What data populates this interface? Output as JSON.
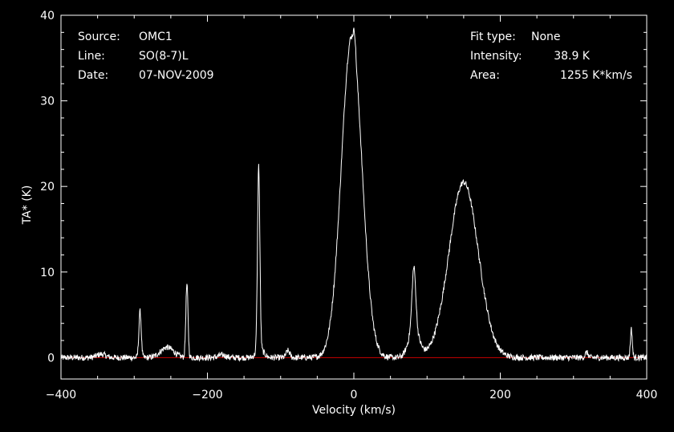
{
  "colors": {
    "background": "#000000",
    "foreground": "#ffffff",
    "baseline": "#cc0000"
  },
  "header": {
    "source_label": "Source:",
    "source_value": "OMC1",
    "line_label": "Line:",
    "line_value": "SO(8-7)L",
    "date_label": "Date:",
    "date_value": "07-NOV-2009",
    "fit_label": "Fit type:",
    "fit_value": "None",
    "intensity_label": "Intensity:",
    "intensity_value": "38.9 K",
    "area_label": "Area:",
    "area_value": "1255 K*km/s"
  },
  "chart_data": {
    "type": "line",
    "xlabel": "Velocity (km/s)",
    "ylabel": "TA* (K)",
    "xlim": [
      -400,
      400
    ],
    "ylim": [
      -2.5,
      40
    ],
    "x_ticks": [
      -400,
      -200,
      0,
      200,
      400
    ],
    "y_ticks": [
      0,
      10,
      20,
      30,
      40
    ],
    "baseline_y": 0,
    "grid": false,
    "series": [
      {
        "style": "line",
        "color": "#ffffff",
        "components": [
          {
            "center": -345,
            "amplitude": 0.4,
            "sigma": 6
          },
          {
            "center": -292,
            "amplitude": 5.4,
            "sigma": 1.6
          },
          {
            "center": -255,
            "amplitude": 1.2,
            "sigma": 9
          },
          {
            "center": -228,
            "amplitude": 8.5,
            "sigma": 1.5
          },
          {
            "center": -180,
            "amplitude": 0.3,
            "sigma": 5
          },
          {
            "center": -130,
            "amplitude": 21.5,
            "sigma": 1.6
          },
          {
            "center": -128,
            "amplitude": 1.0,
            "sigma": 5
          },
          {
            "center": -90,
            "amplitude": 0.8,
            "sigma": 2.5
          },
          {
            "center": -3,
            "amplitude": 37.5,
            "sigma": 14
          },
          {
            "center": 1,
            "amplitude": 2.0,
            "sigma": 1.5
          },
          {
            "center": 82,
            "amplitude": 7.0,
            "sigma": 2.5
          },
          {
            "center": 82,
            "amplitude": 3.5,
            "sigma": 7
          },
          {
            "center": 150,
            "amplitude": 20.5,
            "sigma": 20
          },
          {
            "center": 318,
            "amplitude": 0.6,
            "sigma": 2
          },
          {
            "center": 379,
            "amplitude": 3.3,
            "sigma": 1.3
          }
        ]
      }
    ]
  }
}
